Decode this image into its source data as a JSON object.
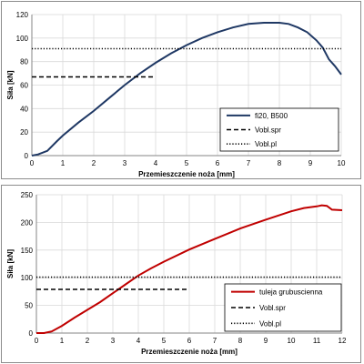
{
  "chart_data": [
    {
      "type": "line",
      "xlabel": "Przemieszczenie noża [mm]",
      "ylabel": "Siła [kN]",
      "xlim": [
        0,
        10
      ],
      "ylim": [
        0,
        120
      ],
      "x_ticks": [
        "0",
        "1",
        "2",
        "3",
        "4",
        "5",
        "6",
        "7",
        "8",
        "9",
        "10"
      ],
      "y_ticks": [
        "0",
        "20",
        "40",
        "60",
        "80",
        "100",
        "120"
      ],
      "grid": true,
      "legend_position": "bottom-right",
      "series": [
        {
          "name": "fi20, B500",
          "color": "#1f3864",
          "style": "solid",
          "x": [
            0,
            0.2,
            0.5,
            0.8,
            1.0,
            1.5,
            2.0,
            2.5,
            3.0,
            3.5,
            4.0,
            4.5,
            5.0,
            5.5,
            6.0,
            6.5,
            7.0,
            7.5,
            8.0,
            8.3,
            8.6,
            8.9,
            9.2,
            9.4,
            9.6,
            9.8,
            10.0
          ],
          "y": [
            0,
            1,
            4,
            12,
            17,
            28,
            38,
            49,
            60,
            70,
            79,
            87,
            94,
            100,
            105,
            109,
            112,
            113,
            113,
            112,
            109,
            105,
            98,
            92,
            82,
            76,
            69
          ]
        },
        {
          "name": "Vobl.spr",
          "color": "#000000",
          "style": "dashed",
          "x": [
            0,
            4
          ],
          "y": [
            67,
            67
          ]
        },
        {
          "name": "Vobl.pl",
          "color": "#000000",
          "style": "dotted",
          "x": [
            0,
            10
          ],
          "y": [
            91,
            91
          ]
        }
      ]
    },
    {
      "type": "line",
      "xlabel": "Przemieszczenie noża [mm]",
      "ylabel": "Siła [kN]",
      "xlim": [
        0,
        12
      ],
      "ylim": [
        0,
        250
      ],
      "x_ticks": [
        "0",
        "1",
        "2",
        "3",
        "4",
        "5",
        "6",
        "7",
        "8",
        "9",
        "10",
        "11",
        "12"
      ],
      "y_ticks": [
        "0",
        "50",
        "100",
        "150",
        "200",
        "250"
      ],
      "grid": true,
      "legend_position": "bottom-right",
      "series": [
        {
          "name": "tuleja grubuscienna",
          "color": "#c00000",
          "style": "solid",
          "x": [
            0,
            0.3,
            0.6,
            1.0,
            1.5,
            2.0,
            2.5,
            3.0,
            3.5,
            4.0,
            4.5,
            5.0,
            6.0,
            7.0,
            8.0,
            9.0,
            10.0,
            10.5,
            11.0,
            11.2,
            11.4,
            11.6,
            12.0
          ],
          "y": [
            0,
            0,
            3,
            13,
            28,
            42,
            56,
            72,
            88,
            104,
            117,
            129,
            151,
            170,
            189,
            205,
            220,
            226,
            229,
            231,
            230,
            223,
            222
          ]
        },
        {
          "name": "Vobl.spr",
          "color": "#000000",
          "style": "dashed",
          "x": [
            0,
            6
          ],
          "y": [
            79,
            79
          ]
        },
        {
          "name": "Vobl.pl",
          "color": "#000000",
          "style": "dotted",
          "x": [
            0,
            12
          ],
          "y": [
            101,
            101
          ]
        }
      ]
    }
  ]
}
